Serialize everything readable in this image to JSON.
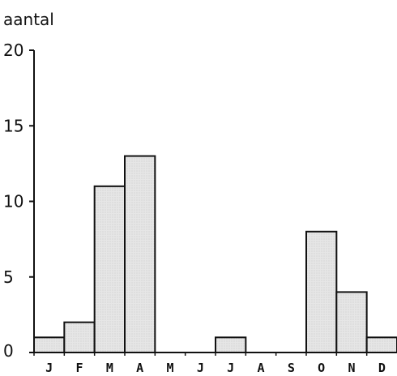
{
  "chart_data": {
    "type": "bar",
    "ylabel": "aantal",
    "xlabel": "",
    "categories": [
      "J",
      "F",
      "M",
      "A",
      "M",
      "J",
      "J",
      "A",
      "S",
      "O",
      "N",
      "D"
    ],
    "values": [
      1,
      2,
      11,
      13,
      0,
      0,
      1,
      0,
      0,
      8,
      4,
      1
    ],
    "ylim": [
      0,
      20
    ],
    "yticks": [
      "0",
      "5",
      "10",
      "15",
      "20"
    ],
    "grid": false,
    "legend": "none",
    "colors": {
      "bar_fill": "#e4e4e4",
      "bar_stroke": "#111111",
      "axis": "#111111"
    }
  }
}
